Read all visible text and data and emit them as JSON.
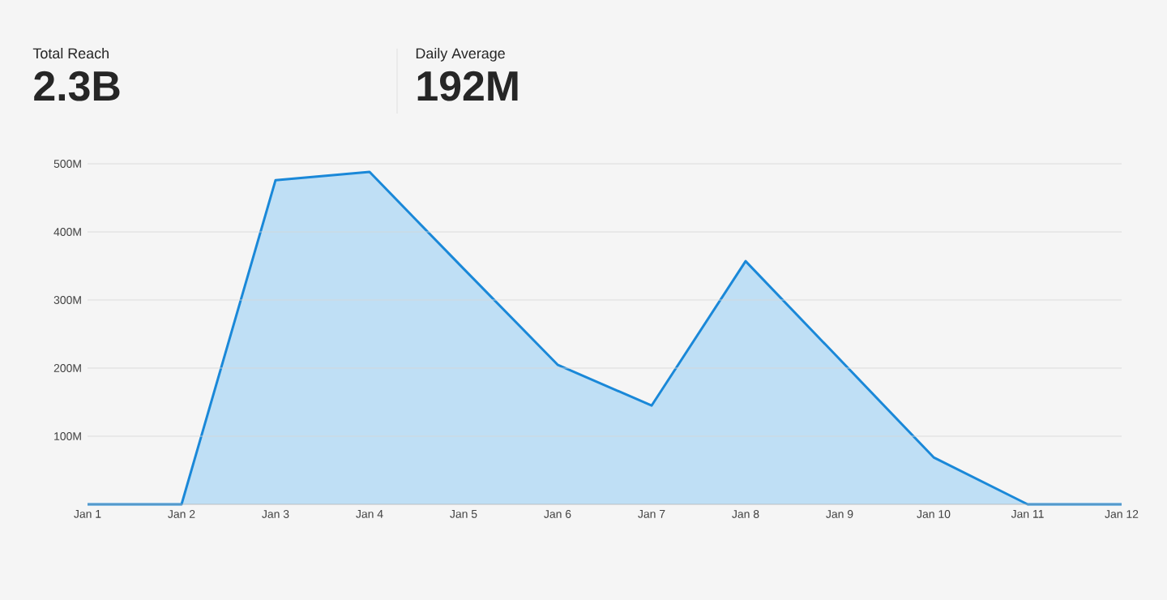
{
  "chart_data": {
    "type": "area",
    "annotations": [
      "Total Reach",
      "2.3B",
      "Daily Average",
      "192M"
    ],
    "categories": [
      "Jan 1",
      "Jan 2",
      "Jan 3",
      "Jan 4",
      "Jan 5",
      "Jan 6",
      "Jan 7",
      "Jan 8",
      "Jan 9",
      "Jan 10",
      "Jan 11",
      "Jan 12"
    ],
    "values": [
      0,
      0,
      476,
      488,
      346,
      205,
      145,
      357,
      213,
      69,
      0,
      0
    ],
    "color": "#1a88d8",
    "ylim": [
      0,
      500
    ],
    "yticks": [
      {
        "value": 100,
        "label": "100M"
      },
      {
        "value": 200,
        "label": "200M"
      },
      {
        "value": 300,
        "label": "300M"
      },
      {
        "value": 400,
        "label": "400M"
      },
      {
        "value": 500,
        "label": "500M"
      }
    ],
    "grid": "y"
  }
}
